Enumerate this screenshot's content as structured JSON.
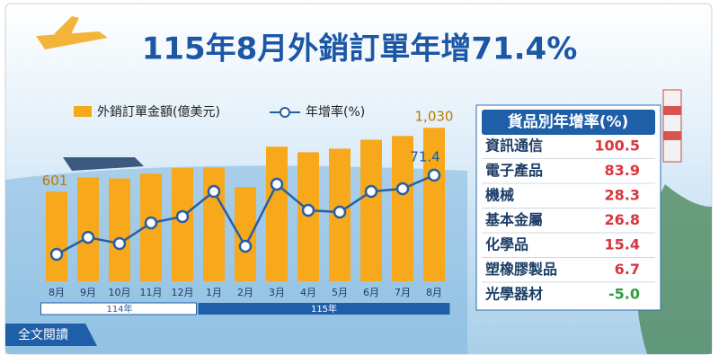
{
  "header": {
    "title": "115年8月外銷訂單年增71.4%"
  },
  "chart_data": {
    "type": "bar-line",
    "categories": [
      "8月",
      "9月",
      "10月",
      "11月",
      "12月",
      "1月",
      "2月",
      "3月",
      "4月",
      "5月",
      "6月",
      "7月",
      "8月"
    ],
    "years": [
      "114年",
      "115年"
    ],
    "series": [
      {
        "name": "外銷訂單金額(億美元)",
        "color": "#f7a81b",
        "type": "bar",
        "values": [
          601,
          697,
          690,
          722,
          759,
          763,
          632,
          903,
          866,
          890,
          950,
          975,
          1030
        ],
        "value_labels": [
          "601",
          null,
          null,
          null,
          null,
          null,
          null,
          null,
          null,
          null,
          null,
          null,
          "1,030"
        ]
      },
      {
        "name": "年增率(%)",
        "color": "#2a5f9e",
        "type": "line",
        "axis": "y2",
        "values": [
          12.7,
          25.3,
          20.7,
          36,
          40.7,
          59.3,
          18.7,
          64.7,
          45.3,
          44,
          59.3,
          61.3,
          71.4
        ],
        "value_labels": [
          null,
          null,
          null,
          null,
          null,
          null,
          null,
          null,
          null,
          null,
          null,
          null,
          "71.4"
        ]
      }
    ],
    "ylim": [
      0,
      1200
    ],
    "y2lim": [
      -7.3,
      125.3
    ]
  },
  "table": {
    "title": "貨品別年增率(%)",
    "rows": [
      [
        "資訊通信",
        "100.5"
      ],
      [
        "電子產品",
        "83.9"
      ],
      [
        "機械",
        "28.3"
      ],
      [
        "基本金屬",
        "26.8"
      ],
      [
        "化學品",
        "15.4"
      ],
      [
        "塑橡膠製品",
        "6.7"
      ],
      [
        "光學器材",
        "-5.0"
      ]
    ]
  },
  "link": "全文閱讀"
}
